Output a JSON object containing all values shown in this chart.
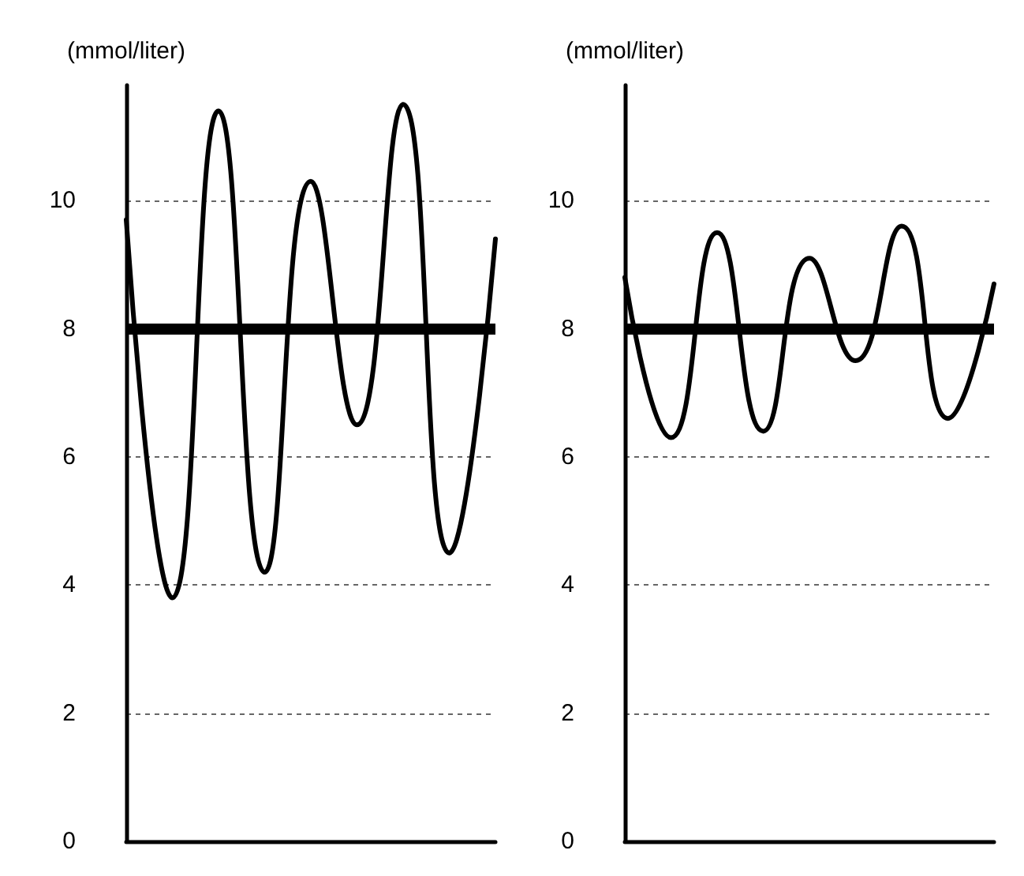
{
  "chart_data": [
    {
      "type": "line",
      "ylabel": "(mmol/liter)",
      "categories": [
        null,
        null,
        null,
        null,
        null,
        null,
        null,
        null,
        null
      ],
      "series": [
        {
          "color": "#000000",
          "values": [
            9.7,
            3.8,
            11.4,
            4.2,
            10.3,
            6.5,
            11.5,
            4.5,
            9.4
          ]
        }
      ],
      "ylim": [
        0,
        11.8
      ],
      "yticks": [
        0,
        2,
        4,
        6,
        8,
        10
      ],
      "grid": "y",
      "tick_labels": "y",
      "marker": "none",
      "line_style": "solid",
      "ref_lines": [
        {
          "axis": "y",
          "value": 8,
          "color": "#000000"
        }
      ]
    },
    {
      "type": "line",
      "ylabel": "(mmol/liter)",
      "categories": [
        null,
        null,
        null,
        null,
        null,
        null,
        null,
        null,
        null
      ],
      "series": [
        {
          "color": "#000000",
          "values": [
            8.8,
            6.3,
            9.5,
            6.4,
            9.1,
            7.5,
            9.6,
            6.6,
            8.7
          ]
        }
      ],
      "ylim": [
        0,
        11.8
      ],
      "yticks": [
        0,
        2,
        4,
        6,
        8,
        10
      ],
      "grid": "y",
      "tick_labels": "y",
      "marker": "none",
      "line_style": "solid",
      "ref_lines": [
        {
          "axis": "y",
          "value": 8,
          "color": "#000000"
        }
      ]
    }
  ]
}
